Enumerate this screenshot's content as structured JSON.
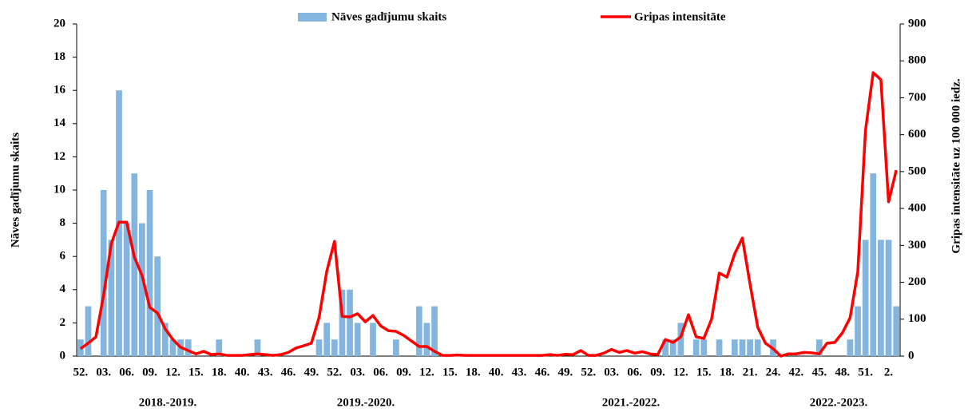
{
  "chart_data": {
    "type": "bar-line",
    "legend": "top",
    "y_label": "Nāves gadījumu skaits",
    "y2_label": "Gripas intensitāte uz 100 000 iedz.",
    "categories": [
      "52.",
      null,
      null,
      "03.",
      null,
      null,
      "06.",
      null,
      null,
      "09.",
      null,
      null,
      "12.",
      null,
      null,
      "15.",
      null,
      null,
      "18.",
      null,
      null,
      "40.",
      null,
      null,
      "43.",
      null,
      null,
      "46.",
      null,
      null,
      "49.",
      null,
      null,
      "52.",
      null,
      null,
      "03.",
      null,
      null,
      "06.",
      null,
      null,
      "09.",
      null,
      null,
      "12.",
      null,
      null,
      "15.",
      null,
      null,
      "18.",
      null,
      null,
      "40.",
      null,
      null,
      "43.",
      null,
      null,
      "46.",
      null,
      null,
      "49.",
      null,
      null,
      "52.",
      null,
      null,
      "03.",
      null,
      null,
      "06.",
      null,
      null,
      "09.",
      null,
      null,
      "12.",
      null,
      null,
      "15.",
      null,
      null,
      "18.",
      null,
      null,
      "21.",
      null,
      null,
      "24.",
      null,
      null,
      "42.",
      null,
      null,
      "45.",
      null,
      null,
      "48.",
      null,
      null,
      "51.",
      null,
      null,
      "2.",
      null
    ],
    "groups": [
      "2018.-2019.",
      "2019.-2020.",
      "2021.-2022.",
      "2022.-2023."
    ],
    "series": [
      {
        "name": "Nāves gadījumu skaits",
        "kind": "bar",
        "color": "#83b5de",
        "values": [
          1,
          3,
          0,
          10,
          7,
          16,
          8,
          11,
          8,
          10,
          6,
          2,
          1,
          1,
          1,
          0,
          0,
          0,
          1,
          0,
          0,
          0,
          0,
          1,
          0,
          0,
          0,
          0,
          0,
          0,
          0,
          1,
          2,
          1,
          4,
          4,
          2,
          0,
          2,
          0,
          0,
          1,
          0,
          0,
          3,
          2,
          3,
          0,
          0,
          0,
          0,
          0,
          0,
          0,
          0,
          0,
          0,
          0,
          0,
          0,
          0,
          0,
          0,
          0,
          0,
          0,
          0,
          0,
          0,
          0,
          0,
          0,
          0,
          0,
          0,
          0,
          1,
          1,
          2,
          0,
          1,
          1,
          0,
          1,
          0,
          1,
          1,
          1,
          1,
          0,
          1,
          0,
          0,
          0,
          0,
          0,
          1,
          0,
          0,
          0,
          1,
          3,
          7,
          11,
          7,
          7,
          3
        ]
      },
      {
        "name": "Gripas intensitāte",
        "kind": "line",
        "axis": "y2",
        "color": "#ff0000",
        "values": [
          20,
          35,
          52,
          165,
          305,
          363,
          363,
          268,
          218,
          132,
          117,
          74,
          45,
          24,
          15,
          6,
          13,
          4,
          6,
          2,
          2,
          2,
          4,
          6,
          4,
          2,
          4,
          10,
          22,
          28,
          35,
          105,
          230,
          311,
          108,
          106,
          115,
          93,
          110,
          82,
          69,
          67,
          56,
          41,
          26,
          26,
          13,
          2,
          2,
          3,
          2,
          2,
          2,
          2,
          2,
          2,
          2,
          2,
          2,
          2,
          2,
          4,
          2,
          5,
          4,
          15,
          2,
          2,
          8,
          18,
          10,
          15,
          8,
          12,
          6,
          4,
          45,
          37,
          52,
          112,
          52,
          48,
          100,
          225,
          214,
          277,
          320,
          195,
          78,
          35,
          20,
          0,
          6,
          6,
          10,
          9,
          6,
          35,
          37,
          63,
          104,
          229,
          612,
          768,
          749,
          418,
          504
        ]
      }
    ],
    "ylim": [
      0,
      20
    ],
    "yticks": [
      0,
      2,
      4,
      6,
      8,
      10,
      12,
      14,
      16,
      18,
      20
    ],
    "y2lim": [
      0,
      900
    ],
    "y2ticks": [
      0,
      100,
      200,
      300,
      400,
      500,
      600,
      700,
      800,
      900
    ]
  }
}
